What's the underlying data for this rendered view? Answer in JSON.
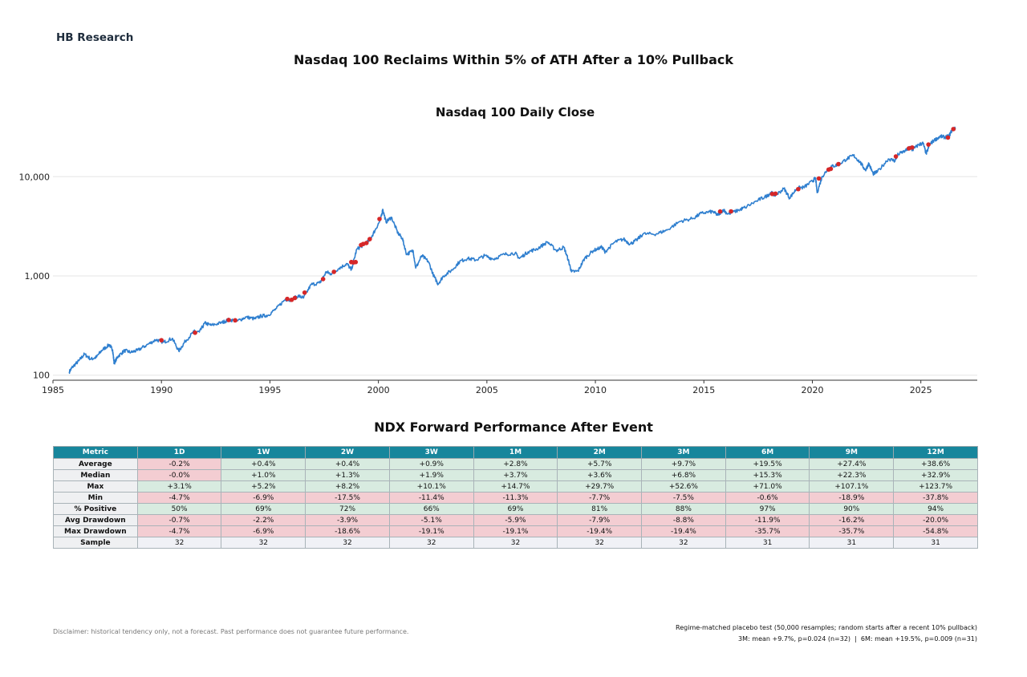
{
  "brand": "HB Research",
  "suptitle": "Nasdaq 100 Reclaims Within 5% of ATH After a 10% Pullback",
  "colors": {
    "line": "#2f7fcf",
    "marker": "#d62728",
    "header": "#17869c",
    "positive": "#d8ebe0",
    "negative": "#f3cdd2"
  },
  "chart_data": [
    {
      "type": "line",
      "title": "Nasdaq 100 Daily Close",
      "xlabel": "",
      "ylabel": "",
      "y_scale": "log",
      "ylim": [
        89,
        37000
      ],
      "xlim": [
        1985.0,
        2027.6
      ],
      "x_ticks": [
        1985,
        1990,
        1995,
        2000,
        2005,
        2010,
        2015,
        2020,
        2025
      ],
      "y_ticks": [
        100,
        1000,
        10000
      ],
      "y_tick_labels": [
        "100",
        "1,000",
        "10,000"
      ],
      "grid": "horizontal",
      "series": [
        {
          "values": [
            [
              1985.75,
              108
            ],
            [
              1985.9,
              121
            ],
            [
              1986.2,
              140
            ],
            [
              1986.45,
              163
            ],
            [
              1986.75,
              145
            ],
            [
              1987.0,
              152
            ],
            [
              1987.25,
              178
            ],
            [
              1987.6,
              203
            ],
            [
              1987.75,
              180
            ],
            [
              1987.82,
              132
            ],
            [
              1988.0,
              155
            ],
            [
              1988.3,
              177
            ],
            [
              1988.6,
              170
            ],
            [
              1988.9,
              178
            ],
            [
              1989.3,
              200
            ],
            [
              1989.75,
              228
            ],
            [
              1990.1,
              215
            ],
            [
              1990.5,
              235
            ],
            [
              1990.8,
              175
            ],
            [
              1991.1,
              220
            ],
            [
              1991.5,
              275
            ],
            [
              1991.75,
              272
            ],
            [
              1992.0,
              335
            ],
            [
              1992.3,
              318
            ],
            [
              1992.8,
              340
            ],
            [
              1993.1,
              362
            ],
            [
              1993.5,
              352
            ],
            [
              1993.9,
              385
            ],
            [
              1994.3,
              370
            ],
            [
              1994.6,
              395
            ],
            [
              1994.9,
              400
            ],
            [
              1995.3,
              470
            ],
            [
              1995.7,
              580
            ],
            [
              1996.0,
              575
            ],
            [
              1996.3,
              630
            ],
            [
              1996.55,
              600
            ],
            [
              1996.9,
              820
            ],
            [
              1997.3,
              850
            ],
            [
              1997.6,
              1100
            ],
            [
              1997.8,
              1050
            ],
            [
              1998.2,
              1200
            ],
            [
              1998.55,
              1330
            ],
            [
              1998.75,
              1150
            ],
            [
              1999.0,
              1850
            ],
            [
              1999.3,
              2050
            ],
            [
              1999.6,
              2300
            ],
            [
              1999.85,
              2900
            ],
            [
              2000.1,
              3700
            ],
            [
              2000.2,
              4700
            ],
            [
              2000.35,
              3500
            ],
            [
              2000.6,
              3900
            ],
            [
              2000.9,
              2700
            ],
            [
              2001.1,
              2400
            ],
            [
              2001.3,
              1650
            ],
            [
              2001.6,
              1800
            ],
            [
              2001.72,
              1200
            ],
            [
              2002.0,
              1600
            ],
            [
              2002.3,
              1400
            ],
            [
              2002.55,
              1000
            ],
            [
              2002.75,
              830
            ],
            [
              2003.0,
              1000
            ],
            [
              2003.4,
              1150
            ],
            [
              2003.75,
              1400
            ],
            [
              2004.1,
              1500
            ],
            [
              2004.5,
              1450
            ],
            [
              2004.9,
              1600
            ],
            [
              2005.3,
              1480
            ],
            [
              2005.8,
              1650
            ],
            [
              2006.3,
              1700
            ],
            [
              2006.5,
              1500
            ],
            [
              2006.9,
              1750
            ],
            [
              2007.3,
              1870
            ],
            [
              2007.8,
              2200
            ],
            [
              2008.2,
              1800
            ],
            [
              2008.55,
              1950
            ],
            [
              2008.75,
              1450
            ],
            [
              2008.9,
              1100
            ],
            [
              2009.2,
              1120
            ],
            [
              2009.5,
              1500
            ],
            [
              2009.9,
              1800
            ],
            [
              2010.3,
              1950
            ],
            [
              2010.45,
              1750
            ],
            [
              2010.9,
              2200
            ],
            [
              2011.3,
              2350
            ],
            [
              2011.6,
              2100
            ],
            [
              2011.9,
              2300
            ],
            [
              2012.2,
              2650
            ],
            [
              2012.8,
              2650
            ],
            [
              2013.3,
              2900
            ],
            [
              2013.9,
              3550
            ],
            [
              2014.5,
              3800
            ],
            [
              2014.9,
              4300
            ],
            [
              2015.4,
              4450
            ],
            [
              2015.65,
              4100
            ],
            [
              2015.9,
              4650
            ],
            [
              2016.1,
              4200
            ],
            [
              2016.6,
              4600
            ],
            [
              2016.9,
              4900
            ],
            [
              2017.5,
              5800
            ],
            [
              2017.9,
              6400
            ],
            [
              2018.1,
              6900
            ],
            [
              2018.3,
              6500
            ],
            [
              2018.7,
              7600
            ],
            [
              2018.95,
              6100
            ],
            [
              2019.3,
              7700
            ],
            [
              2019.6,
              7800
            ],
            [
              2020.0,
              9000
            ],
            [
              2020.15,
              9700
            ],
            [
              2020.22,
              6900
            ],
            [
              2020.45,
              10000
            ],
            [
              2020.7,
              11800
            ],
            [
              2020.9,
              12700
            ],
            [
              2021.2,
              13200
            ],
            [
              2021.6,
              15200
            ],
            [
              2021.9,
              16400
            ],
            [
              2022.2,
              14000
            ],
            [
              2022.45,
              11600
            ],
            [
              2022.6,
              13600
            ],
            [
              2022.8,
              10700
            ],
            [
              2023.0,
              11200
            ],
            [
              2023.5,
              15100
            ],
            [
              2023.8,
              14500
            ],
            [
              2023.95,
              16800
            ],
            [
              2024.3,
              18300
            ],
            [
              2024.55,
              20000
            ],
            [
              2024.6,
              18500
            ],
            [
              2024.9,
              21000
            ],
            [
              2025.1,
              21800
            ],
            [
              2025.25,
              17000
            ],
            [
              2025.4,
              21000
            ],
            [
              2025.6,
              23200
            ],
            [
              2025.9,
              25500
            ],
            [
              2026.1,
              25000
            ],
            [
              2026.3,
              25700
            ],
            [
              2026.45,
              30000
            ],
            [
              2026.6,
              30500
            ]
          ]
        },
        {
          "type": "scatter",
          "values": [
            [
              1990.0,
              225
            ],
            [
              1991.55,
              268
            ],
            [
              1993.1,
              360
            ],
            [
              1993.4,
              357
            ],
            [
              1995.8,
              587
            ],
            [
              1996.0,
              575
            ],
            [
              1996.15,
              600
            ],
            [
              1996.6,
              680
            ],
            [
              1997.45,
              930
            ],
            [
              1997.95,
              1100
            ],
            [
              1998.75,
              1380
            ],
            [
              1998.85,
              1370
            ],
            [
              1998.95,
              1380
            ],
            [
              1999.2,
              2050
            ],
            [
              1999.3,
              2100
            ],
            [
              1999.45,
              2150
            ],
            [
              1999.6,
              2350
            ],
            [
              2000.05,
              3750
            ],
            [
              2015.75,
              4460
            ],
            [
              2016.25,
              4470
            ],
            [
              2018.15,
              6700
            ],
            [
              2018.3,
              6750
            ],
            [
              2019.35,
              7500
            ],
            [
              2020.3,
              9600
            ],
            [
              2020.75,
              11800
            ],
            [
              2020.85,
              12000
            ],
            [
              2021.2,
              13400
            ],
            [
              2023.85,
              16000
            ],
            [
              2024.45,
              19300
            ],
            [
              2024.6,
              19700
            ],
            [
              2025.35,
              21100
            ],
            [
              2026.25,
              24800
            ],
            [
              2026.5,
              30200
            ]
          ]
        }
      ]
    },
    {
      "type": "table",
      "title": "NDX Forward Performance After Event",
      "columns": [
        "Metric",
        "1D",
        "1W",
        "2W",
        "3W",
        "1M",
        "2M",
        "3M",
        "6M",
        "9M",
        "12M"
      ],
      "rows": [
        {
          "label": "Average",
          "values": [
            "-0.2%",
            "+0.4%",
            "+0.4%",
            "+0.9%",
            "+2.8%",
            "+5.7%",
            "+9.7%",
            "+19.5%",
            "+27.4%",
            "+38.6%"
          ],
          "tones": [
            "neg",
            "pos",
            "pos",
            "pos",
            "pos",
            "pos",
            "pos",
            "pos",
            "pos",
            "pos"
          ]
        },
        {
          "label": "Median",
          "values": [
            "-0.0%",
            "+1.0%",
            "+1.3%",
            "+1.9%",
            "+3.7%",
            "+3.6%",
            "+6.8%",
            "+15.3%",
            "+22.3%",
            "+32.9%"
          ],
          "tones": [
            "neg",
            "pos",
            "pos",
            "pos",
            "pos",
            "pos",
            "pos",
            "pos",
            "pos",
            "pos"
          ]
        },
        {
          "label": "Max",
          "values": [
            "+3.1%",
            "+5.2%",
            "+8.2%",
            "+10.1%",
            "+14.7%",
            "+29.7%",
            "+52.6%",
            "+71.0%",
            "+107.1%",
            "+123.7%"
          ],
          "tones": [
            "pos",
            "pos",
            "pos",
            "pos",
            "pos",
            "pos",
            "pos",
            "pos",
            "pos",
            "pos"
          ]
        },
        {
          "label": "Min",
          "values": [
            "-4.7%",
            "-6.9%",
            "-17.5%",
            "-11.4%",
            "-11.3%",
            "-7.7%",
            "-7.5%",
            "-0.6%",
            "-18.9%",
            "-37.8%"
          ],
          "tones": [
            "neg",
            "neg",
            "neg",
            "neg",
            "neg",
            "neg",
            "neg",
            "neg",
            "neg",
            "neg"
          ]
        },
        {
          "label": "% Positive",
          "values": [
            "50%",
            "69%",
            "72%",
            "66%",
            "69%",
            "81%",
            "88%",
            "97%",
            "90%",
            "94%"
          ],
          "tones": [
            "pos",
            "pos",
            "pos",
            "pos",
            "pos",
            "pos",
            "pos",
            "pos",
            "pos",
            "pos"
          ]
        },
        {
          "label": "Avg Drawdown",
          "values": [
            "-0.7%",
            "-2.2%",
            "-3.9%",
            "-5.1%",
            "-5.9%",
            "-7.9%",
            "-8.8%",
            "-11.9%",
            "-16.2%",
            "-20.0%"
          ],
          "tones": [
            "neg",
            "neg",
            "neg",
            "neg",
            "neg",
            "neg",
            "neg",
            "neg",
            "neg",
            "neg"
          ]
        },
        {
          "label": "Max Drawdown",
          "values": [
            "-4.7%",
            "-6.9%",
            "-18.6%",
            "-19.1%",
            "-19.1%",
            "-19.4%",
            "-19.4%",
            "-35.7%",
            "-35.7%",
            "-54.8%"
          ],
          "tones": [
            "neg",
            "neg",
            "neg",
            "neg",
            "neg",
            "neg",
            "neg",
            "neg",
            "neg",
            "neg"
          ]
        },
        {
          "label": "Sample",
          "values": [
            "32",
            "32",
            "32",
            "32",
            "32",
            "32",
            "32",
            "31",
            "31",
            "31"
          ],
          "tones": [
            "neutral",
            "neutral",
            "neutral",
            "neutral",
            "neutral",
            "neutral",
            "neutral",
            "neutral",
            "neutral",
            "neutral"
          ]
        }
      ]
    }
  ],
  "disclaimer": "Disclaimer: historical tendency only, not a forecast. Past performance does not guarantee future performance.",
  "placebo": {
    "line1": "Regime-matched placebo test (50,000 resamples; random starts after a recent 10% pullback)",
    "line2": "3M: mean +9.7%, p=0.024 (n=32)  |  6M: mean +19.5%, p=0.009 (n=31)"
  }
}
